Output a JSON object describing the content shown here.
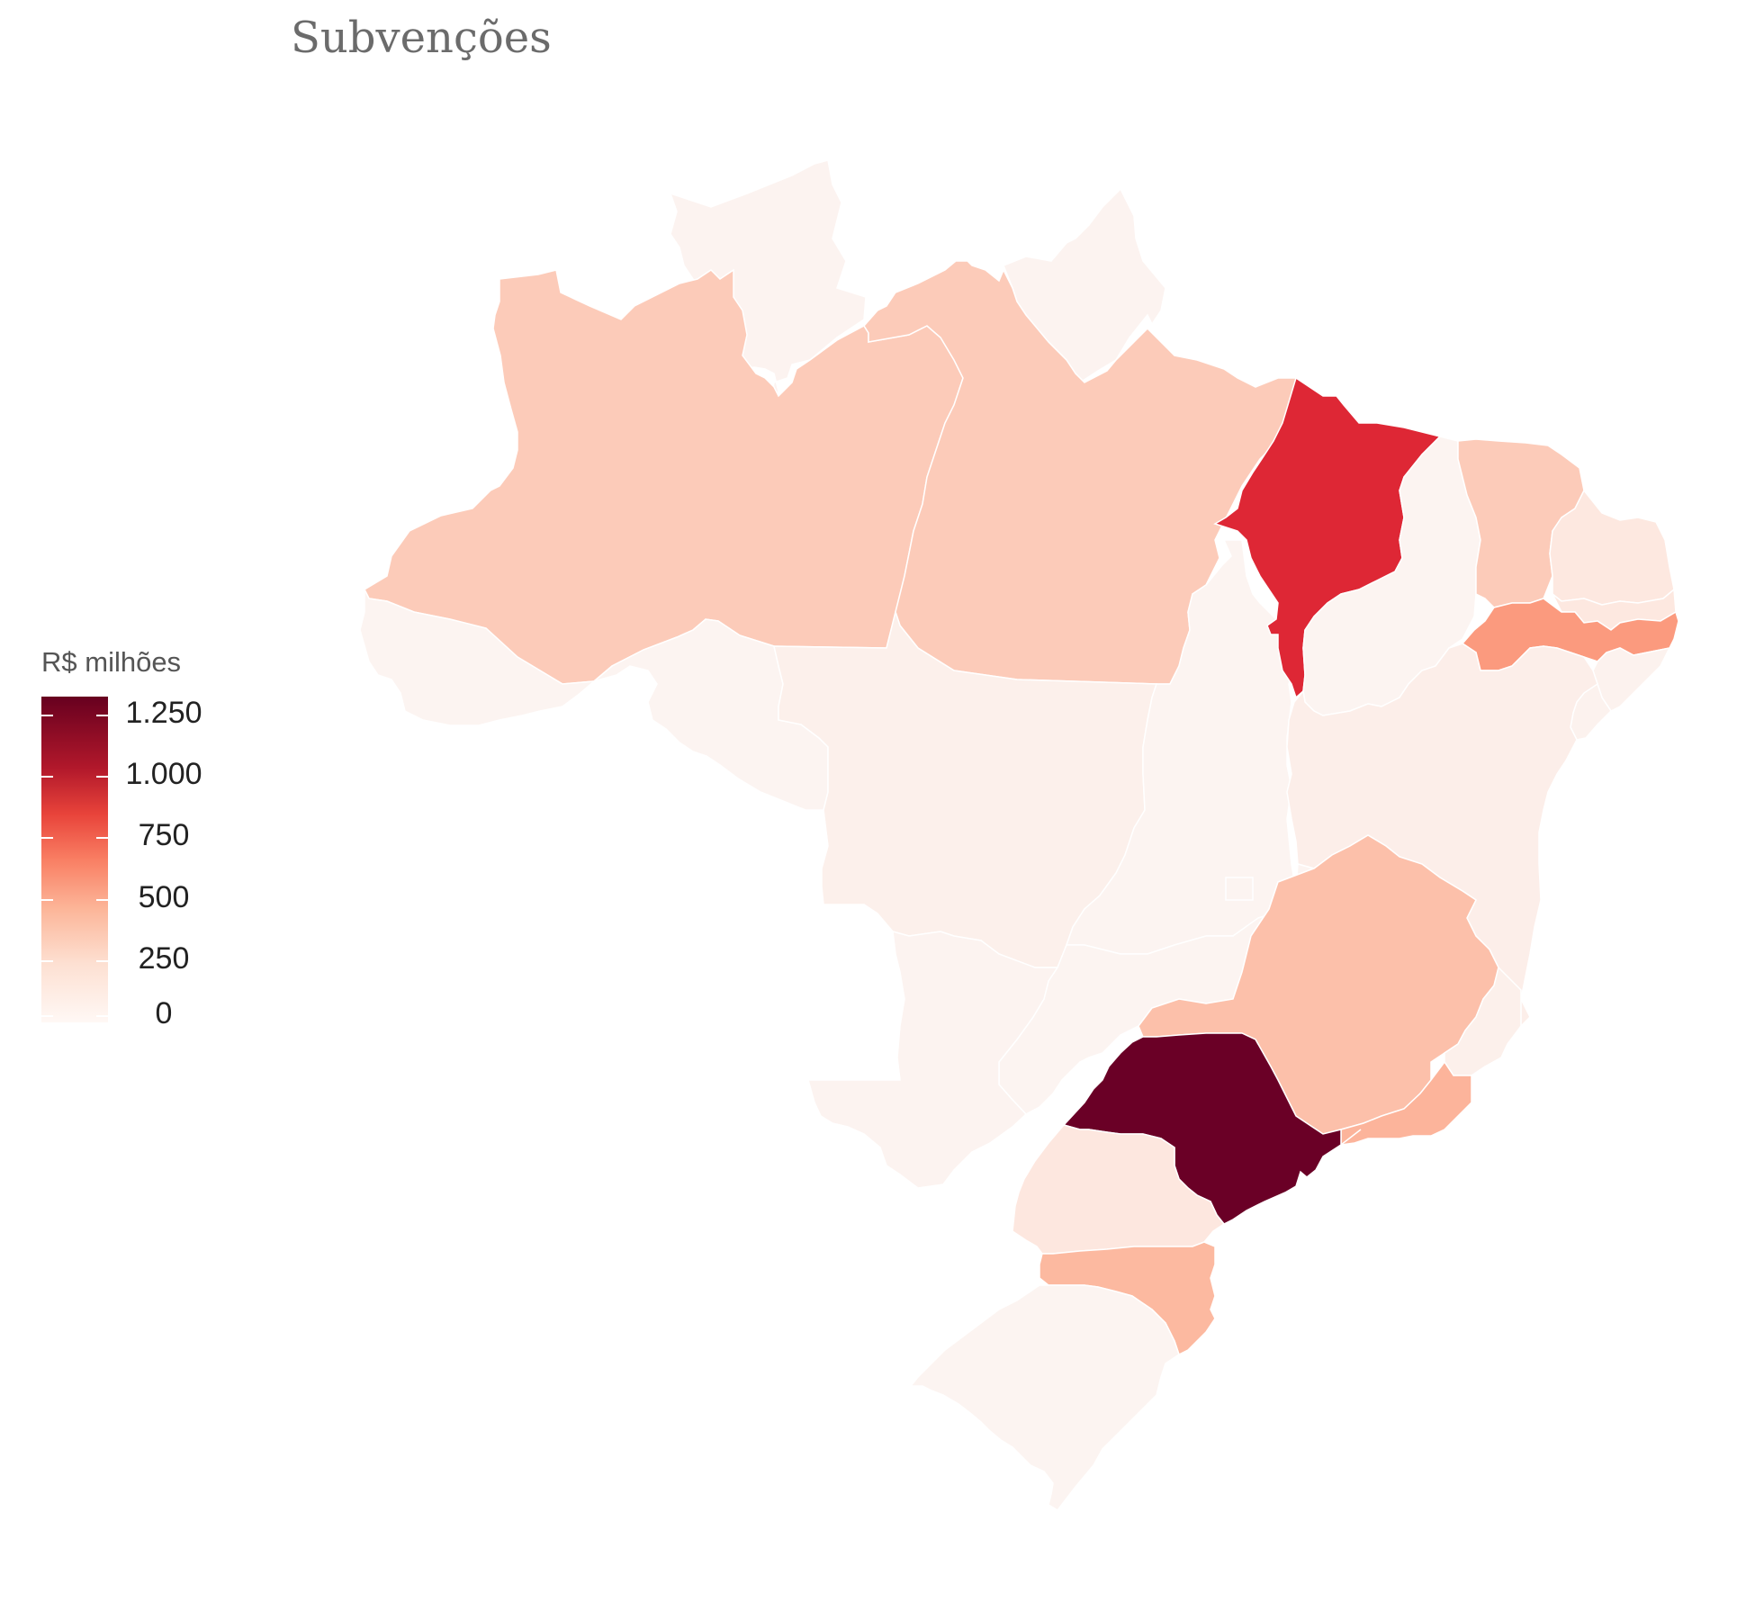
{
  "title": "Subvenções",
  "legend": {
    "title": "R$ milhões",
    "ticks": [
      {
        "label": "1.250",
        "value": 1250
      },
      {
        "label": "1.000",
        "value": 1000
      },
      {
        "label": "750",
        "value": 750
      },
      {
        "label": "500",
        "value": 500
      },
      {
        "label": "250",
        "value": 250
      },
      {
        "label": "0",
        "value": 0
      }
    ],
    "min": 0,
    "max": 1320,
    "colors": [
      "#67001f",
      "#b2182b",
      "#e8433a",
      "#f97e63",
      "#fcb598",
      "#fde0d2",
      "#fff8f5"
    ]
  },
  "states": [
    {
      "id": "RR",
      "value": 30,
      "color": "#fcf3f0"
    },
    {
      "id": "AP",
      "value": 30,
      "color": "#fcf3f0"
    },
    {
      "id": "AM",
      "value": 250,
      "color": "#fccbb9"
    },
    {
      "id": "PA",
      "value": 250,
      "color": "#fccbb9"
    },
    {
      "id": "AC",
      "value": 20,
      "color": "#fcf4f1"
    },
    {
      "id": "RO",
      "value": 20,
      "color": "#fcf4f1"
    },
    {
      "id": "MT",
      "value": 40,
      "color": "#fcf0eb"
    },
    {
      "id": "TO",
      "value": 20,
      "color": "#fcf4f1"
    },
    {
      "id": "MA",
      "value": 1000,
      "color": "#de2735"
    },
    {
      "id": "PI",
      "value": 20,
      "color": "#fcf4f1"
    },
    {
      "id": "CE",
      "value": 250,
      "color": "#fccbb9"
    },
    {
      "id": "RN",
      "value": 80,
      "color": "#fde8e0"
    },
    {
      "id": "PB",
      "value": 80,
      "color": "#fde8e0"
    },
    {
      "id": "PE",
      "value": 520,
      "color": "#fb9a7e"
    },
    {
      "id": "AL",
      "value": 30,
      "color": "#fcf2ee"
    },
    {
      "id": "SE",
      "value": 30,
      "color": "#fcf2ee"
    },
    {
      "id": "BA",
      "value": 50,
      "color": "#fceee9"
    },
    {
      "id": "GO",
      "value": 20,
      "color": "#fcf4f1"
    },
    {
      "id": "DF",
      "value": 20,
      "color": "#fcf4f1"
    },
    {
      "id": "MS",
      "value": 30,
      "color": "#fcf3f0"
    },
    {
      "id": "MG",
      "value": 300,
      "color": "#fcc0aa"
    },
    {
      "id": "ES",
      "value": 40,
      "color": "#fcf0eb"
    },
    {
      "id": "RJ",
      "value": 380,
      "color": "#fcb49b"
    },
    {
      "id": "SP",
      "value": 1320,
      "color": "#6a0026"
    },
    {
      "id": "PR",
      "value": 90,
      "color": "#fde7df"
    },
    {
      "id": "SC",
      "value": 350,
      "color": "#fcb9a0"
    },
    {
      "id": "RS",
      "value": 20,
      "color": "#fcf4f1"
    }
  ]
}
